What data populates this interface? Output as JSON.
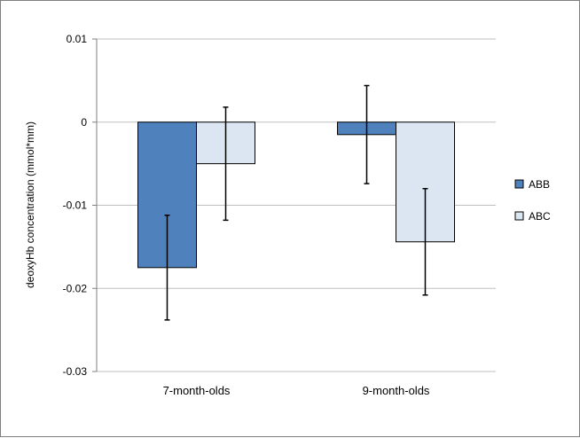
{
  "chart_data": {
    "type": "bar",
    "categories": [
      "7-month-olds",
      "9-month-olds"
    ],
    "ylabel": "deoxyHb concentration (mmol*mm)",
    "xlabel": "",
    "ylim": [
      -0.03,
      0.01
    ],
    "yticks": [
      0.01,
      0,
      -0.01,
      -0.02,
      -0.03
    ],
    "ytick_labels": [
      "0.01",
      "0",
      "-0.01",
      "-0.02",
      "-0.03"
    ],
    "grid": true,
    "legend_position": "right",
    "series": [
      {
        "name": "ABB",
        "color": "#4f81bd",
        "values": [
          -0.0175,
          -0.0015
        ],
        "errors": [
          0.0063,
          0.0059
        ]
      },
      {
        "name": "ABC",
        "color": "#dce6f2",
        "values": [
          -0.005,
          -0.0144
        ],
        "errors": [
          0.0068,
          0.0064
        ]
      }
    ]
  }
}
